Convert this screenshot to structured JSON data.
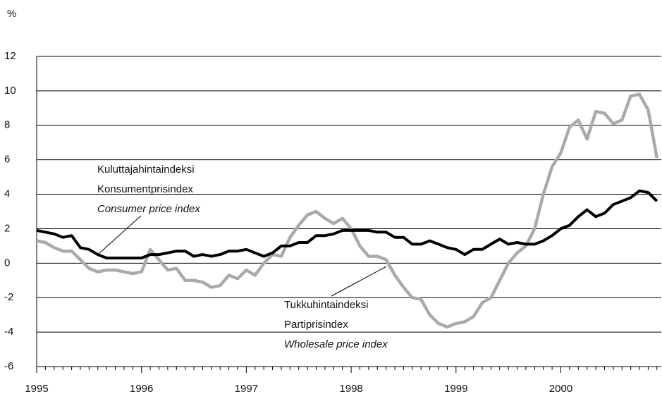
{
  "chart_data": {
    "type": "line",
    "y_unit": "%",
    "categories": [
      "1995",
      null,
      null,
      null,
      null,
      null,
      null,
      null,
      null,
      null,
      null,
      null,
      "1996",
      null,
      null,
      null,
      null,
      null,
      null,
      null,
      null,
      null,
      null,
      null,
      "1997",
      null,
      null,
      null,
      null,
      null,
      null,
      null,
      null,
      null,
      null,
      null,
      "1998",
      null,
      null,
      null,
      null,
      null,
      null,
      null,
      null,
      null,
      null,
      null,
      "1999",
      null,
      null,
      null,
      null,
      null,
      null,
      null,
      null,
      null,
      null,
      null,
      "2000",
      null,
      null,
      null,
      null,
      null,
      null,
      null,
      null,
      null,
      null,
      null
    ],
    "series": [
      {
        "name": "Consumer price index",
        "color": "#000000",
        "values": [
          1.9,
          1.8,
          1.7,
          1.5,
          1.6,
          0.9,
          0.8,
          0.5,
          0.3,
          0.3,
          0.3,
          0.3,
          0.3,
          0.5,
          0.5,
          0.6,
          0.7,
          0.7,
          0.4,
          0.5,
          0.4,
          0.5,
          0.7,
          0.7,
          0.8,
          0.6,
          0.4,
          0.6,
          1.0,
          1.0,
          1.2,
          1.2,
          1.6,
          1.6,
          1.7,
          1.9,
          1.9,
          1.9,
          1.9,
          1.8,
          1.8,
          1.5,
          1.5,
          1.1,
          1.1,
          1.3,
          1.1,
          0.9,
          0.8,
          0.5,
          0.8,
          0.8,
          1.1,
          1.4,
          1.1,
          1.2,
          1.1,
          1.1,
          1.3,
          1.6,
          2.0,
          2.2,
          2.7,
          3.1,
          2.7,
          2.9,
          3.4,
          3.6,
          3.8,
          4.2,
          4.1,
          3.6
        ]
      },
      {
        "name": "Wholesale price index",
        "color": "#aaaaaa",
        "values": [
          1.3,
          1.2,
          0.9,
          0.7,
          0.7,
          0.2,
          -0.3,
          -0.5,
          -0.4,
          -0.4,
          -0.5,
          -0.6,
          -0.5,
          0.8,
          0.2,
          -0.4,
          -0.3,
          -1.0,
          -1.0,
          -1.1,
          -1.4,
          -1.3,
          -0.7,
          -0.9,
          -0.4,
          -0.7,
          0.0,
          0.5,
          0.4,
          1.5,
          2.2,
          2.8,
          3.0,
          2.6,
          2.3,
          2.6,
          2.0,
          1.0,
          0.4,
          0.4,
          0.2,
          -0.7,
          -1.4,
          -2.0,
          -2.1,
          -3.0,
          -3.5,
          -3.7,
          -3.5,
          -3.4,
          -3.1,
          -2.3,
          -2.0,
          -1.0,
          0.0,
          0.6,
          1.0,
          2.0,
          4.0,
          5.6,
          6.4,
          7.9,
          8.3,
          7.2,
          8.8,
          8.7,
          8.1,
          8.3,
          9.7,
          9.8,
          8.9,
          6.1
        ]
      }
    ],
    "annotations": [
      {
        "lines": [
          "Kuluttajahintaindeksi",
          "Konsumentprisindex",
          "Consumer price index"
        ]
      },
      {
        "lines": [
          "Tukkuhintaindeksi",
          "Partiprisindex",
          "Wholesale price index"
        ]
      }
    ],
    "ylim": [
      -6,
      12
    ],
    "yticks": [
      -6,
      -4,
      -2,
      0,
      2,
      4,
      6,
      8,
      10,
      12
    ],
    "grid": true
  }
}
